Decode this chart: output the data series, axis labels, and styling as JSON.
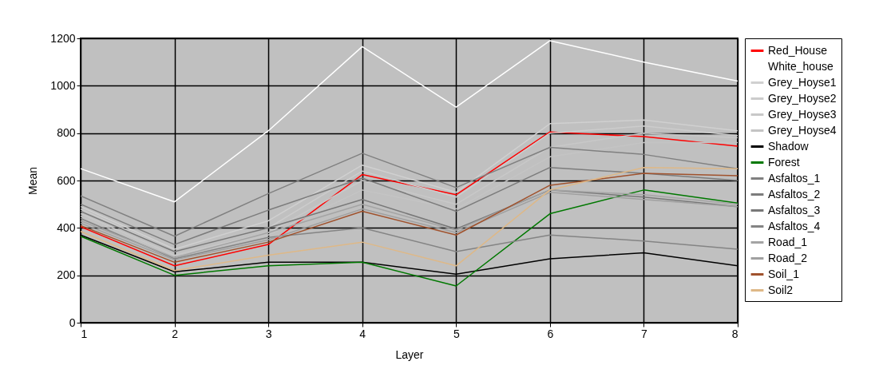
{
  "chart_data": {
    "type": "line",
    "xlabel": "Layer",
    "ylabel": "Mean",
    "x": [
      1,
      2,
      3,
      4,
      5,
      6,
      7,
      8
    ],
    "xlim": [
      1,
      8
    ],
    "xticks": [
      1,
      2,
      3,
      4,
      5,
      6,
      7,
      8
    ],
    "ylim": [
      0,
      1200
    ],
    "yticks": [
      0,
      200,
      400,
      600,
      800,
      1000,
      1200
    ],
    "grid": true,
    "legend": "right",
    "marker": "none",
    "line_style": "solid",
    "series": [
      {
        "name": "Red_House",
        "color": "#ff0000",
        "values": [
          405,
          240,
          330,
          625,
          540,
          805,
          785,
          745
        ]
      },
      {
        "name": "White_house",
        "color": "#ffffff",
        "values": [
          650,
          510,
          810,
          1165,
          910,
          1190,
          1100,
          1020
        ]
      },
      {
        "name": "Grey_Hoyse1",
        "color": "#d0d0d0",
        "values": [
          490,
          310,
          430,
          665,
          550,
          840,
          855,
          810
        ]
      },
      {
        "name": "Grey_Hoyse2",
        "color": "#cccccc",
        "values": [
          480,
          300,
          400,
          640,
          530,
          800,
          830,
          790
        ]
      },
      {
        "name": "Grey_Hoyse3",
        "color": "#c8c8c8",
        "values": [
          460,
          285,
          380,
          600,
          500,
          740,
          800,
          780
        ]
      },
      {
        "name": "Grey_Hoyse4",
        "color": "#c4c4c4",
        "values": [
          450,
          280,
          370,
          560,
          480,
          700,
          760,
          760
        ]
      },
      {
        "name": "Shadow",
        "color": "#000000",
        "values": [
          370,
          215,
          255,
          255,
          205,
          270,
          295,
          240
        ]
      },
      {
        "name": "Forest",
        "color": "#007800",
        "values": [
          365,
          200,
          240,
          255,
          155,
          460,
          560,
          505
        ]
      },
      {
        "name": "Asfaltos_1",
        "color": "#808080",
        "values": [
          535,
          365,
          545,
          715,
          570,
          740,
          710,
          650
        ]
      },
      {
        "name": "Asfaltos_2",
        "color": "#7c7c7c",
        "values": [
          500,
          330,
          475,
          610,
          470,
          655,
          630,
          600
        ]
      },
      {
        "name": "Asfaltos_3",
        "color": "#787878",
        "values": [
          470,
          300,
          400,
          520,
          395,
          560,
          530,
          490
        ]
      },
      {
        "name": "Asfaltos_4",
        "color": "#848484",
        "values": [
          440,
          270,
          360,
          400,
          300,
          370,
          345,
          310
        ]
      },
      {
        "name": "Road_1",
        "color": "#a4a4a4",
        "values": [
          430,
          275,
          380,
          500,
          390,
          560,
          540,
          500
        ]
      },
      {
        "name": "Road_2",
        "color": "#a0a0a0",
        "values": [
          420,
          265,
          350,
          480,
          380,
          550,
          520,
          490
        ]
      },
      {
        "name": "Soil_1",
        "color": "#a0522d",
        "values": [
          410,
          255,
          340,
          470,
          370,
          580,
          630,
          620
        ]
      },
      {
        "name": "Soil2",
        "color": "#deb887",
        "values": [
          385,
          220,
          285,
          340,
          240,
          560,
          655,
          650
        ]
      }
    ]
  }
}
